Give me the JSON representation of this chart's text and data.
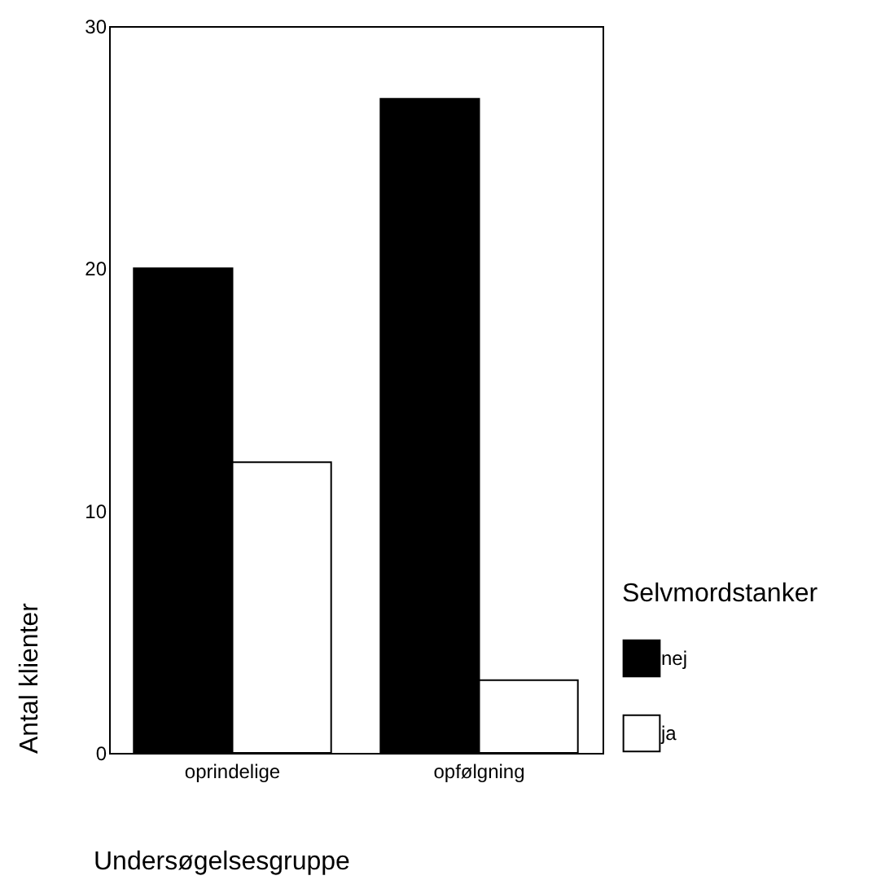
{
  "chart_data": {
    "type": "bar",
    "xlabel": "Undersøgelsesgruppe",
    "ylabel": "Antal klienter",
    "legend_title": "Selvmordstanker",
    "categories": [
      "oprindelige",
      "opfølgning"
    ],
    "series": [
      {
        "name": "nej",
        "color": "#000000",
        "values": [
          20,
          27
        ]
      },
      {
        "name": "ja",
        "color": "#ffffff",
        "values": [
          12,
          3
        ]
      }
    ],
    "ylim": [
      0,
      30
    ],
    "yticks": [
      0,
      10,
      20,
      30
    ],
    "grid": false,
    "legend": "right"
  }
}
